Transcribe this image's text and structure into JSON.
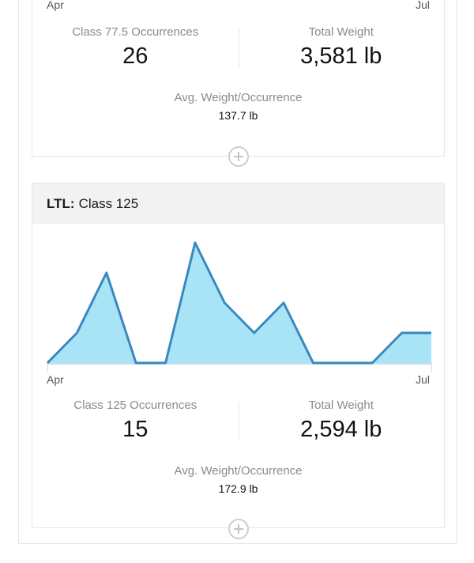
{
  "card1": {
    "axis_start": "Apr",
    "axis_end": "Jul",
    "occurrences_label": "Class 77.5 Occurrences",
    "occurrences_value": "26",
    "weight_label": "Total Weight",
    "weight_value": "3,581 lb",
    "avg_label": "Avg. Weight/Occurrence",
    "avg_value": "137.7 lb"
  },
  "card2": {
    "header_prefix": "LTL:",
    "header_title": "Class 125",
    "axis_start": "Apr",
    "axis_end": "Jul",
    "occurrences_label": "Class 125 Occurrences",
    "occurrences_value": "15",
    "weight_label": "Total Weight",
    "weight_value": "2,594 lb",
    "avg_label": "Avg. Weight/Occurrence",
    "avg_value": "172.9 lb"
  },
  "chart_data": {
    "type": "area",
    "values": [
      0,
      1,
      3,
      0,
      0,
      4,
      2,
      1,
      2,
      0,
      0,
      0,
      1,
      1
    ],
    "ylim": [
      0,
      4
    ],
    "colors": {
      "line": "#3a88c0",
      "fill": "#a8e4f6",
      "baseline": "#c8dcef"
    }
  },
  "icons": {
    "expand": "plus-circle-icon"
  }
}
